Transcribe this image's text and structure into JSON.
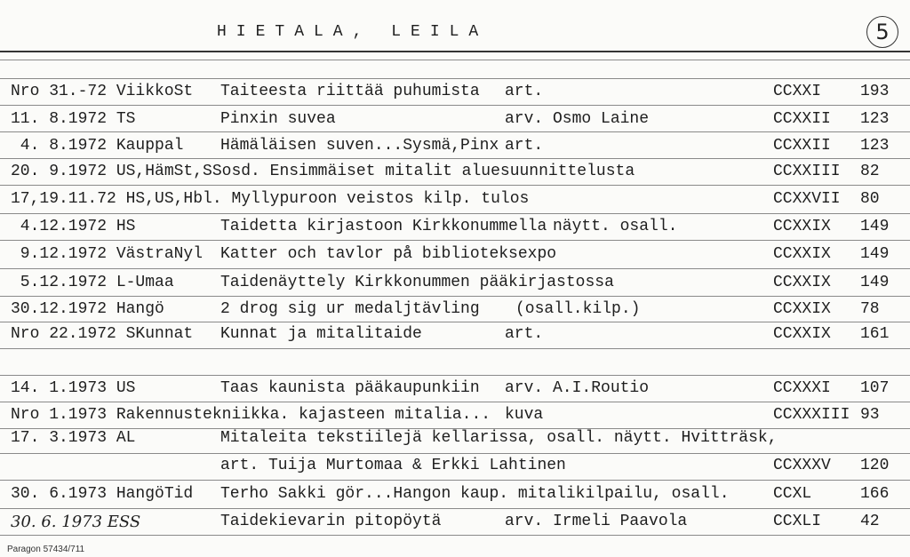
{
  "header": {
    "title": "HIETALA, LEILA",
    "card_number": "5"
  },
  "rows": [
    {
      "date": "Nro 31.-72 ViikkoSt",
      "title": "Taiteesta riittää puhumista",
      "note": "art.",
      "code": "CCXXI",
      "page": "193"
    },
    {
      "date": "11. 8.1972 TS",
      "title": "Pinxin suvea",
      "note": "arv. Osmo Laine",
      "code": "CCXXII",
      "page": "123"
    },
    {
      "date": " 4. 8.1972 Kauppal",
      "title": "Hämäläisen suven...Sysmä,Pinx",
      "note": "art.",
      "code": "CCXXII",
      "page": "123"
    },
    {
      "date": "20. 9.1972 US,HämSt,SSosd. Ensimmäiset mitalit aluesuunnittelusta",
      "title": "",
      "note": "",
      "code": "CCXXIII",
      "page": "82"
    },
    {
      "date": "17,19.11.72 HS,US,Hbl. Myllypuroon veistos kilp. tulos",
      "title": "",
      "note": "",
      "code": "CCXXVII",
      "page": "80"
    },
    {
      "date": " 4.12.1972 HS",
      "title": "Taidetta kirjastoon Kirkkonummella",
      "note": "näytt. osall.",
      "code": "CCXXIX",
      "page": "149"
    },
    {
      "date": " 9.12.1972 VästraNyl",
      "title": "Katter och tavlor på biblioteksexpo",
      "note": "",
      "code": "CCXXIX",
      "page": "149"
    },
    {
      "date": " 5.12.1972 L-Umaa",
      "title": "Taidenäyttely Kirkkonummen pääkirjastossa",
      "note": "",
      "code": "CCXXIX",
      "page": "149"
    },
    {
      "date": "30.12.1972 Hangö",
      "title": "2 drog sig ur medaljtävling",
      "note": "(osall.kilp.)",
      "code": "CCXXIX",
      "page": "78"
    },
    {
      "date": "Nro 22.1972 SKunnat",
      "title": "Kunnat ja mitalitaide",
      "note": "art.",
      "code": "CCXXIX",
      "page": "161"
    },
    {
      "date": "14. 1.1973 US",
      "title": "Taas kaunista pääkaupunkiin",
      "note": "arv. A.I.Routio",
      "code": "CCXXXI",
      "page": "107"
    },
    {
      "date": "Nro 1.1973 Rakennustekniikka. kajasteen mitalia...",
      "title": "",
      "note": "kuva",
      "code": "CCXXXIII",
      "page": "93"
    },
    {
      "date": "17. 3.1973 AL",
      "title": "Mitaleita tekstiilejä kellarissa, osall. näytt. Hvitträsk,",
      "note": "",
      "code": "",
      "page": ""
    },
    {
      "date": "",
      "title": "art. Tuija Murtomaa & Erkki Lahtinen",
      "note": "",
      "code": "CCXXXV",
      "page": "120"
    },
    {
      "date": "30. 6.1973 HangöTid",
      "title": "Terho Sakki gör...Hangon kaup. mitalikilpailu, osall.",
      "note": "",
      "code": "CCXL",
      "page": "166"
    },
    {
      "date": "30. 6. 1973 ESS",
      "title": "Taidekievarin pitopöytä",
      "note": "arv. Irmeli Paavola",
      "code": "CCXLI",
      "page": "42"
    }
  ],
  "footer": {
    "printer": "Paragon 57434/711"
  }
}
